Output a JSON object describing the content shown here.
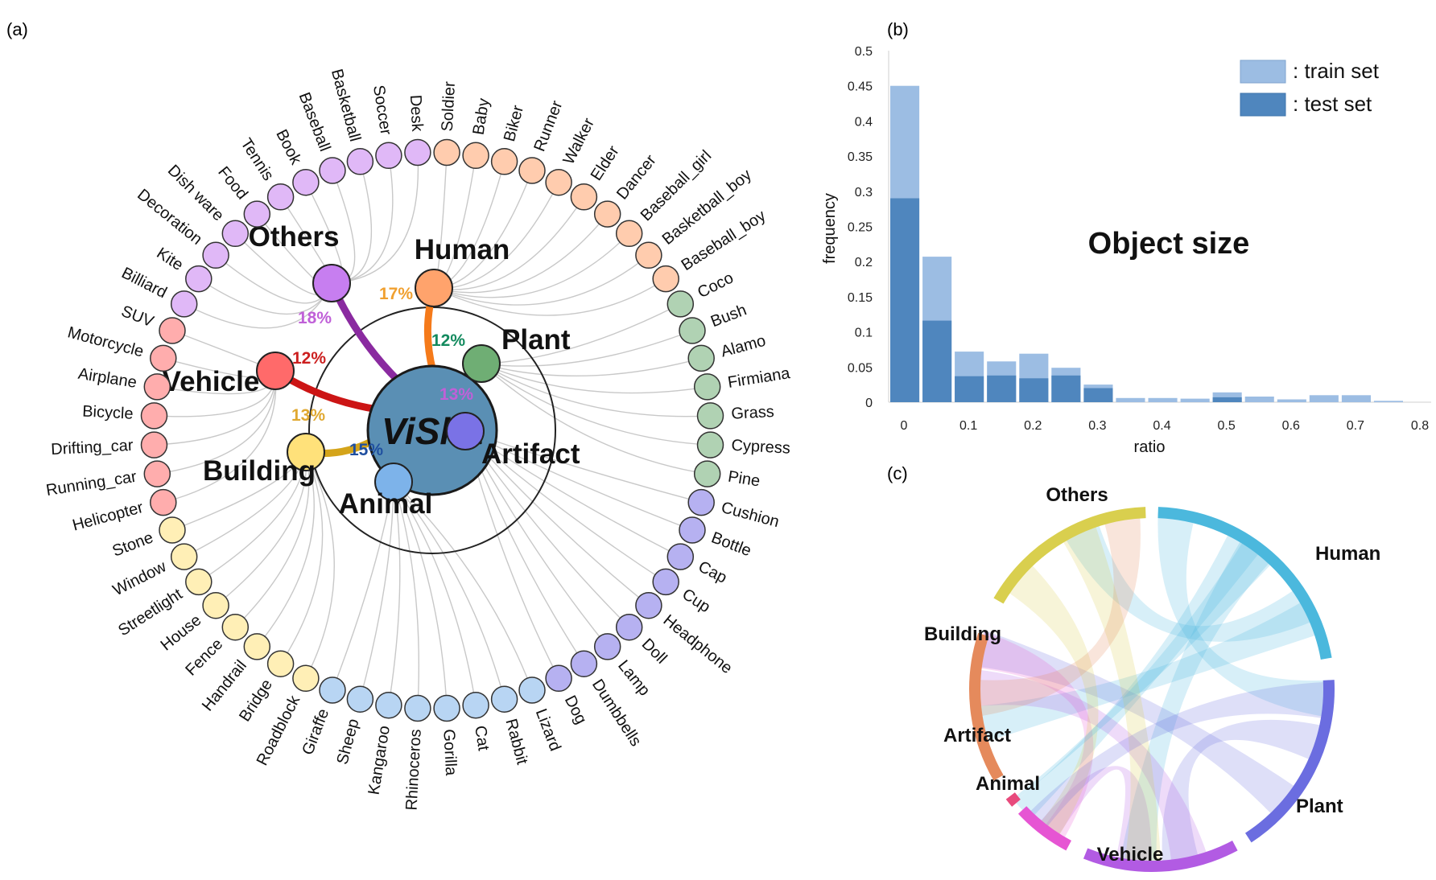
{
  "panel_labels": {
    "a": "(a)",
    "b": "(b)",
    "c": "(c)"
  },
  "panel_a": {
    "center": "ViSha",
    "categories": [
      {
        "name": "Others",
        "pct": "18%",
        "color": "#c77ef0",
        "pct_color": "#c060d8",
        "link": "#8a2aa0"
      },
      {
        "name": "Human",
        "pct": "17%",
        "color": "#ffa36c",
        "pct_color": "#f0a030",
        "link": "#f57a1a"
      },
      {
        "name": "Plant",
        "pct": "12%",
        "color": "#6fae74",
        "pct_color": "#138a5e",
        "link": "#0f8a60"
      },
      {
        "name": "Artifact",
        "pct": "13%",
        "color": "#7a72e6",
        "pct_color": "#c060d8",
        "link": "#6b3fd0"
      },
      {
        "name": "Animal",
        "pct": "15%",
        "color": "#7db3ea",
        "pct_color": "#1f4fa0",
        "link": "#1c3f99"
      },
      {
        "name": "Building",
        "pct": "13%",
        "color": "#ffe17a",
        "pct_color": "#e0a830",
        "link": "#d4a41a"
      },
      {
        "name": "Vehicle",
        "pct": "12%",
        "color": "#ff6a6a",
        "pct_color": "#cc1f1f",
        "link": "#cc1515"
      }
    ],
    "leaves": [
      {
        "label": "Desk",
        "cat": 0
      },
      {
        "label": "Soccer",
        "cat": 0
      },
      {
        "label": "Basketball",
        "cat": 0
      },
      {
        "label": "Baseball",
        "cat": 0
      },
      {
        "label": "Book",
        "cat": 0
      },
      {
        "label": "Tennis",
        "cat": 0
      },
      {
        "label": "Food",
        "cat": 0
      },
      {
        "label": "Dish ware",
        "cat": 0
      },
      {
        "label": "Decoration",
        "cat": 0
      },
      {
        "label": "Kite",
        "cat": 0
      },
      {
        "label": "Billiard",
        "cat": 0
      },
      {
        "label": "SUV",
        "cat": 6
      },
      {
        "label": "Motorcycle",
        "cat": 6
      },
      {
        "label": "Airplane",
        "cat": 6
      },
      {
        "label": "Bicycle",
        "cat": 6
      },
      {
        "label": "Drifting_car",
        "cat": 6
      },
      {
        "label": "Running_car",
        "cat": 6
      },
      {
        "label": "Helicopter",
        "cat": 6
      },
      {
        "label": "Stone",
        "cat": 5
      },
      {
        "label": "Window",
        "cat": 5
      },
      {
        "label": "Streetlight",
        "cat": 5
      },
      {
        "label": "House",
        "cat": 5
      },
      {
        "label": "Fence",
        "cat": 5
      },
      {
        "label": "Handrail",
        "cat": 5
      },
      {
        "label": "Bridge",
        "cat": 5
      },
      {
        "label": "Roadblock",
        "cat": 5
      },
      {
        "label": "Giraffe",
        "cat": 4
      },
      {
        "label": "Sheep",
        "cat": 4
      },
      {
        "label": "Kangaroo",
        "cat": 4
      },
      {
        "label": "Rhinoceros",
        "cat": 4
      },
      {
        "label": "Gorilla",
        "cat": 4
      },
      {
        "label": "Cat",
        "cat": 4
      },
      {
        "label": "Rabbit",
        "cat": 4
      },
      {
        "label": "Lizard",
        "cat": 4
      },
      {
        "label": "Dog",
        "cat": 3
      },
      {
        "label": "Dumbbells",
        "cat": 3
      },
      {
        "label": "Lamp",
        "cat": 3
      },
      {
        "label": "Doll",
        "cat": 3
      },
      {
        "label": "Headphone",
        "cat": 3
      },
      {
        "label": "Cup",
        "cat": 3
      },
      {
        "label": "Cap",
        "cat": 3
      },
      {
        "label": "Bottle",
        "cat": 3
      },
      {
        "label": "Cushion",
        "cat": 3
      },
      {
        "label": "Pine",
        "cat": 2
      },
      {
        "label": "Cypress",
        "cat": 2
      },
      {
        "label": "Grass",
        "cat": 2
      },
      {
        "label": "Firmiana",
        "cat": 2
      },
      {
        "label": "Alamo",
        "cat": 2
      },
      {
        "label": "Bush",
        "cat": 2
      },
      {
        "label": "Coco",
        "cat": 2
      },
      {
        "label": "Baseball_boy",
        "cat": 1
      },
      {
        "label": "Basketball_boy",
        "cat": 1
      },
      {
        "label": "Baseball_girl",
        "cat": 1
      },
      {
        "label": "Dancer",
        "cat": 1
      },
      {
        "label": "Elder",
        "cat": 1
      },
      {
        "label": "Walker",
        "cat": 1
      },
      {
        "label": "Runner",
        "cat": 1
      },
      {
        "label": "Biker",
        "cat": 1
      },
      {
        "label": "Baby",
        "cat": 1
      },
      {
        "label": "Soldier",
        "cat": 1
      }
    ]
  },
  "chart_data": {
    "type": "bar",
    "title": "Object size",
    "xlabel": "ratio",
    "ylabel": "frequency",
    "ylim": [
      0,
      0.5
    ],
    "yticks": [
      "0",
      "0.05",
      "0.1",
      "0.15",
      "0.2",
      "0.25",
      "0.3",
      "0.35",
      "0.4",
      "0.45",
      "0.5"
    ],
    "xticks": [
      "0",
      "0.1",
      "0.2",
      "0.3",
      "0.4",
      "0.5",
      "0.6",
      "0.7",
      "0.8"
    ],
    "bin_width": 0.05,
    "x": [
      0,
      0.05,
      0.1,
      0.15,
      0.2,
      0.25,
      0.3,
      0.35,
      0.4,
      0.45,
      0.5,
      0.55,
      0.6,
      0.65,
      0.7,
      0.75
    ],
    "series": [
      {
        "name": ": train set",
        "color": "#9cbde3",
        "values": [
          0.45,
          0.207,
          0.072,
          0.058,
          0.069,
          0.049,
          0.025,
          0.006,
          0.006,
          0.005,
          0.014,
          0.008,
          0.004,
          0.01,
          0.01,
          0.002
        ]
      },
      {
        "name": ": test set",
        "color": "#4f86be",
        "values": [
          0.29,
          0.116,
          0.037,
          0.038,
          0.034,
          0.038,
          0.02,
          0.0,
          0.0,
          0.0,
          0.007,
          0.0,
          0.0,
          0.0,
          0.0,
          0.0
        ]
      }
    ],
    "legend": "top-right",
    "grid": false
  },
  "panel_c": {
    "type": "chord",
    "groups": [
      {
        "name": "Human",
        "color": "#4bb8dd"
      },
      {
        "name": "Plant",
        "color": "#6b6de0"
      },
      {
        "name": "Vehicle",
        "color": "#b25be3"
      },
      {
        "name": "Animal",
        "color": "#e655d3"
      },
      {
        "name": "Artifact",
        "color": "#e84a7c"
      },
      {
        "name": "Building",
        "color": "#e58a5c"
      },
      {
        "name": "Others",
        "color": "#d9cf4e"
      }
    ]
  }
}
